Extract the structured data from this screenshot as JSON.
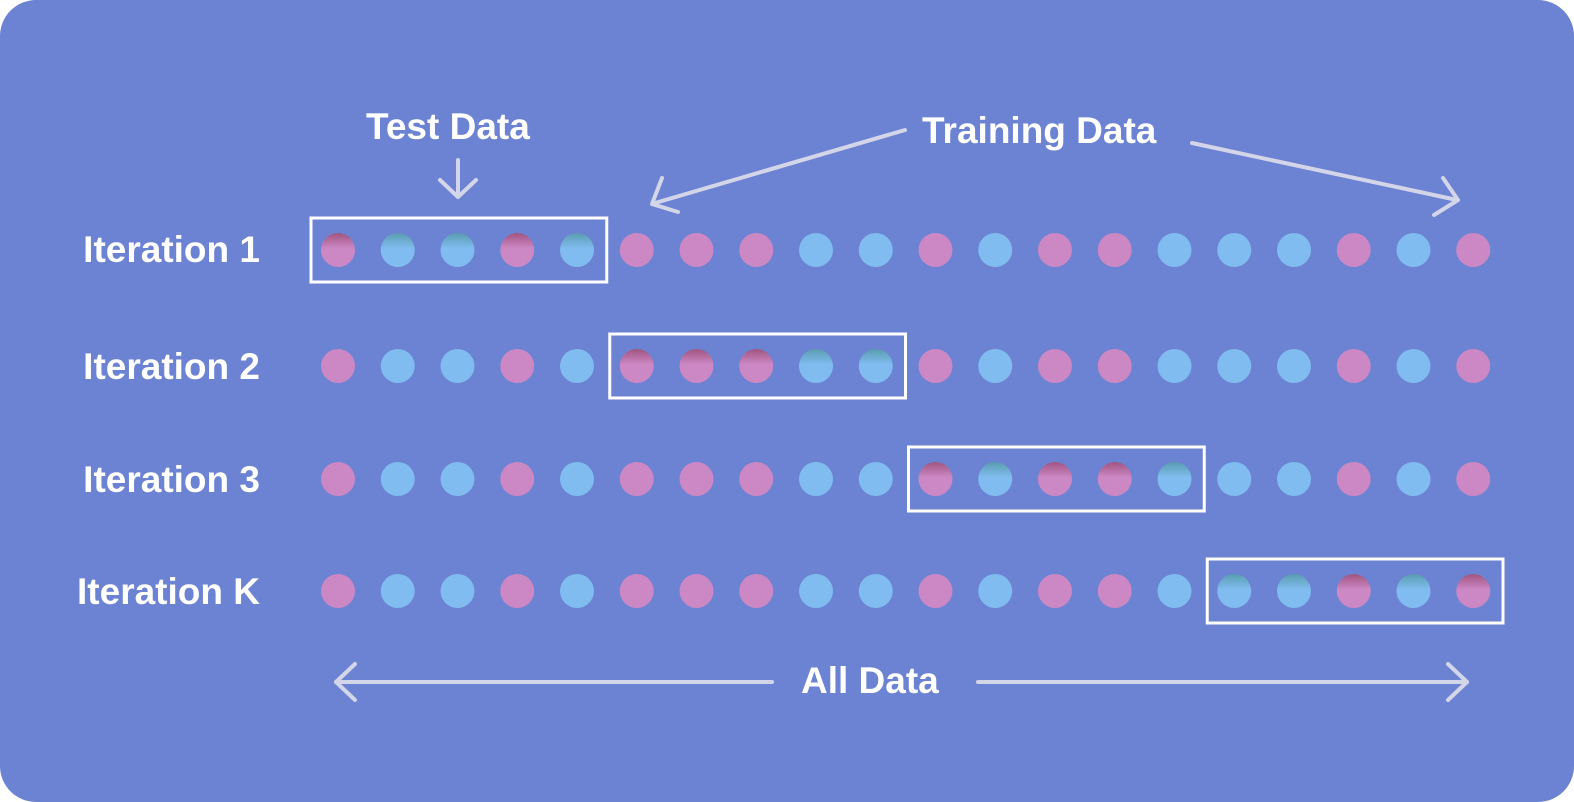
{
  "labels": {
    "test_data": "Test Data",
    "training_data": "Training Data",
    "all_data": "All Data"
  },
  "iterations": [
    {
      "label": "Iteration 1",
      "test_fold": 0
    },
    {
      "label": "Iteration 2",
      "test_fold": 1
    },
    {
      "label": "Iteration 3",
      "test_fold": 2
    },
    {
      "label": "Iteration K",
      "test_fold": 3
    }
  ],
  "fold_size": 5,
  "data_points": [
    "pink",
    "blue",
    "blue",
    "pink",
    "blue",
    "pink",
    "pink",
    "pink",
    "blue",
    "blue",
    "pink",
    "blue",
    "pink",
    "pink",
    "blue",
    "blue",
    "blue",
    "pink",
    "blue",
    "pink"
  ],
  "colors": {
    "background": "#6c82d2",
    "pink": "#cc88c4",
    "blue": "#80bcef",
    "arrow": "#d3d6e8",
    "box": "#ffffff"
  }
}
